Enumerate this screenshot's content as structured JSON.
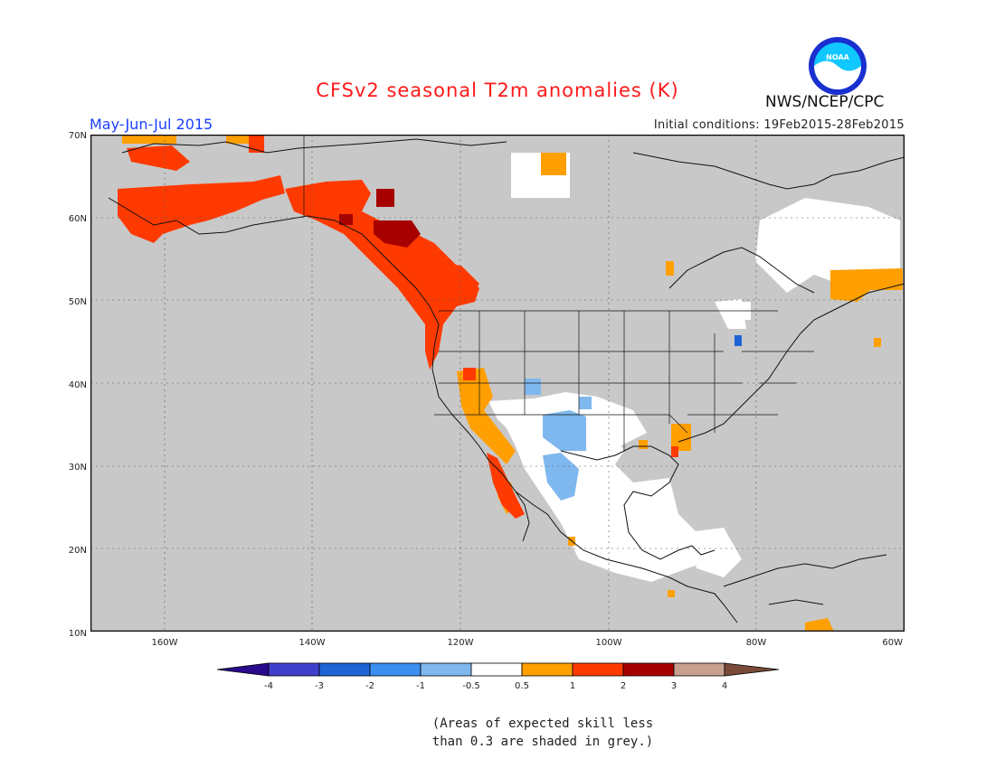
{
  "header": {
    "title": "CFSv2 seasonal T2m anomalies (K)",
    "period": "May-Jun-Jul 2015",
    "initial_conditions": "Initial conditions: 19Feb2015-28Feb2015",
    "agency": "NWS/NCEP/CPC",
    "logo_text": "NOAA"
  },
  "map": {
    "region": "North America",
    "lon_range": [
      -170,
      -60
    ],
    "lat_range": [
      10,
      70
    ],
    "lat_ticks": [
      "10N",
      "20N",
      "30N",
      "40N",
      "50N",
      "60N",
      "70N"
    ],
    "lon_ticks": [
      "160W",
      "140W",
      "120W",
      "100W",
      "80W",
      "60W"
    ],
    "background_color": "#c8c8c8"
  },
  "colorbar": {
    "labels": [
      "-4",
      "-3",
      "-2",
      "-1",
      "-0.5",
      "0.5",
      "1",
      "2",
      "3",
      "4"
    ],
    "colors": [
      "#2a0a8c",
      "#3f3fcc",
      "#1e64d6",
      "#3b8ff0",
      "#7fb8ee",
      "#ffffff",
      "#ff9f00",
      "#ff3a00",
      "#a60000",
      "#c8a090",
      "#7a4a3a"
    ]
  },
  "legend": {
    "note_line1": "(Areas of expected skill less",
    "note_line2": "than 0.3 are shaded in grey.)"
  }
}
